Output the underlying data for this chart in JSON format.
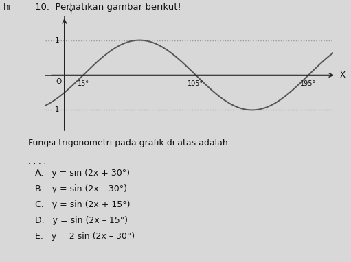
{
  "title": "10.  Perhatikan gambar berikut!",
  "subtitle_text": "Fungsi trigonometri pada grafik di atas adalah",
  "dots_text": ". . . .",
  "options": [
    "A.   y = sin (2x + 30°)",
    "B.   y = sin (2x – 30°)",
    "C.   y = sin (2x + 15°)",
    "D.   y = sin (2x – 15°)",
    "E.   y = 2 sin (2x – 30°)"
  ],
  "x_ticks": [
    15,
    105,
    195
  ],
  "x_tick_labels": [
    "15°",
    "105°",
    "195°"
  ],
  "xlim": [
    -15,
    215
  ],
  "ylim": [
    -1.6,
    1.7
  ],
  "curve_color": "#555555",
  "dot_color": "#999999",
  "background_color": "#d8d8d8",
  "text_color": "#111111",
  "freq": 2,
  "phase_deg": 30,
  "amplitude": 1
}
